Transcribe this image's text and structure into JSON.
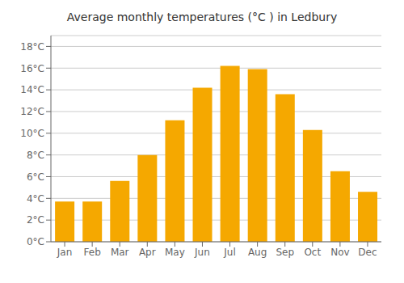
{
  "chart_data": {
    "type": "bar",
    "title": "Average monthly temperatures (°C ) in Ledbury",
    "categories": [
      "Jan",
      "Feb",
      "Mar",
      "Apr",
      "May",
      "Jun",
      "Jul",
      "Aug",
      "Sep",
      "Oct",
      "Nov",
      "Dec"
    ],
    "values": [
      3.7,
      3.7,
      5.6,
      8.0,
      11.2,
      14.2,
      16.2,
      15.9,
      13.6,
      10.3,
      6.5,
      4.6
    ],
    "color": "#F5A800",
    "ylim": [
      0,
      19
    ],
    "yticks": [
      {
        "value": 0,
        "label": "0°C"
      },
      {
        "value": 2,
        "label": "2°C"
      },
      {
        "value": 4,
        "label": "4°C"
      },
      {
        "value": 6,
        "label": "6°C"
      },
      {
        "value": 8,
        "label": "8°C"
      },
      {
        "value": 10,
        "label": "10°C"
      },
      {
        "value": 12,
        "label": "12°C"
      },
      {
        "value": 14,
        "label": "14°C"
      },
      {
        "value": 16,
        "label": "16°C"
      },
      {
        "value": 18,
        "label": "18°C"
      }
    ],
    "grid": true
  }
}
